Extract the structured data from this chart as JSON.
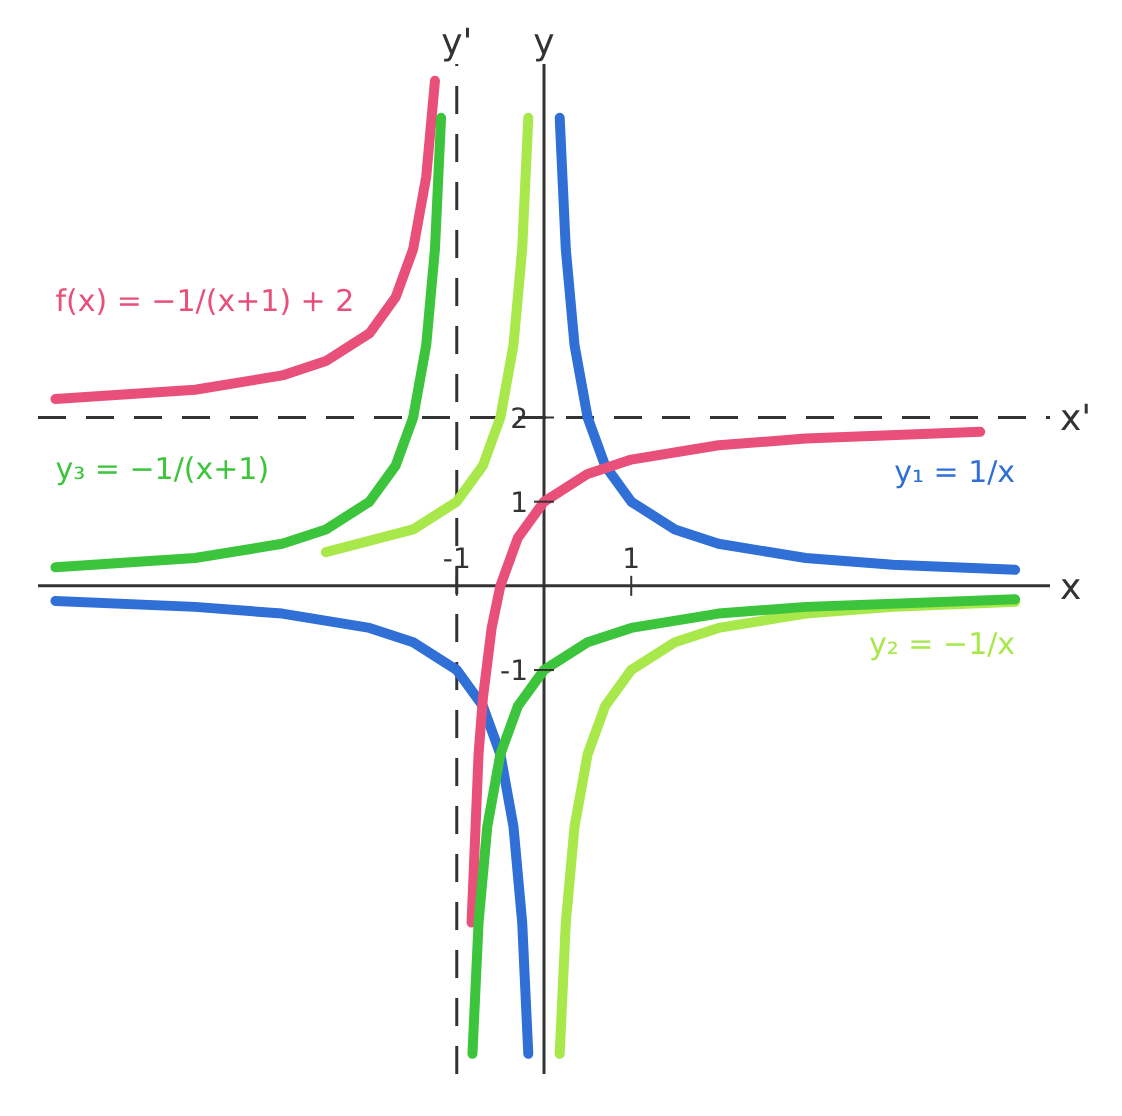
{
  "chart_data": {
    "type": "line",
    "xlabel": "x",
    "ylabel": "y",
    "xlim": [
      -5.8,
      5.8
    ],
    "ylim": [
      -5.8,
      6.2
    ],
    "xticks": [
      -1,
      1
    ],
    "yticks": [
      -1,
      1,
      2
    ],
    "marker": "none",
    "line_style": "solid",
    "ref_lines": [
      {
        "axis": "x",
        "value": -1,
        "label": "y'",
        "line_style": "dashed",
        "color": "#333333"
      },
      {
        "axis": "y",
        "value": 2,
        "label": "x'",
        "line_style": "dashed",
        "color": "#333333"
      }
    ],
    "series": [
      {
        "name": "y₁ = 1/x",
        "color": "#2f6fd6",
        "x": [
          5.4,
          4,
          3,
          2,
          1.5,
          1,
          0.7,
          0.5,
          0.35,
          0.25,
          0.18,
          0,
          -0.18,
          -0.25,
          -0.35,
          -0.5,
          -0.7,
          -1,
          -1.5,
          -2,
          -3,
          -4,
          -5.6
        ],
        "values": [
          0.19,
          0.25,
          0.33,
          0.5,
          0.67,
          1,
          1.43,
          2,
          2.86,
          4,
          5.56,
          null,
          -5.56,
          -4,
          -2.86,
          -2,
          -1.43,
          -1,
          -0.67,
          -0.5,
          -0.33,
          -0.25,
          -0.18
        ]
      },
      {
        "name": "y₂ = −1/x",
        "color": "#a8e84a",
        "x": [
          5.4,
          4,
          3,
          2,
          1.5,
          1,
          0.7,
          0.5,
          0.35,
          0.25,
          0.18,
          0,
          -0.18,
          -0.25,
          -0.35,
          -0.5,
          -0.7,
          -1,
          -1.5,
          -2.5
        ],
        "values": [
          -0.19,
          -0.25,
          -0.33,
          -0.5,
          -0.67,
          -1,
          -1.43,
          -2,
          -2.86,
          -4,
          -5.56,
          null,
          5.56,
          4,
          2.86,
          2,
          1.43,
          1,
          0.67,
          0.4
        ]
      },
      {
        "name": "f(x) = −1/(x+1) + 2",
        "color": "#e8507a",
        "x": [
          -5.6,
          -4,
          -3,
          -2.5,
          -2,
          -1.7,
          -1.5,
          -1.35,
          -1.25,
          -1,
          -0.83,
          -0.75,
          -0.7,
          -0.6,
          -0.5,
          -0.3,
          0,
          0.5,
          1,
          2,
          3,
          5
        ],
        "values": [
          2.22,
          2.33,
          2.5,
          2.67,
          3,
          3.43,
          4,
          4.86,
          6,
          null,
          -4,
          -2,
          -1.33,
          -0.5,
          0,
          0.57,
          1,
          1.33,
          1.5,
          1.67,
          1.75,
          1.83
        ]
      },
      {
        "name": "y₃ = −1/(x+1)",
        "color": "#3cc43c",
        "x": [
          -5.6,
          -4,
          -3,
          -2.5,
          -2,
          -1.7,
          -1.5,
          -1.35,
          -1.25,
          -1.18,
          -1,
          -0.82,
          -0.75,
          -0.65,
          -0.5,
          -0.3,
          0,
          0.5,
          1,
          2,
          3,
          5.4
        ],
        "values": [
          0.22,
          0.33,
          0.5,
          0.67,
          1,
          1.43,
          2,
          2.86,
          4,
          5.56,
          null,
          -5.56,
          -4,
          -2.86,
          -2,
          -1.43,
          -1,
          -0.67,
          -0.5,
          -0.33,
          -0.25,
          -0.16
        ]
      }
    ]
  }
}
